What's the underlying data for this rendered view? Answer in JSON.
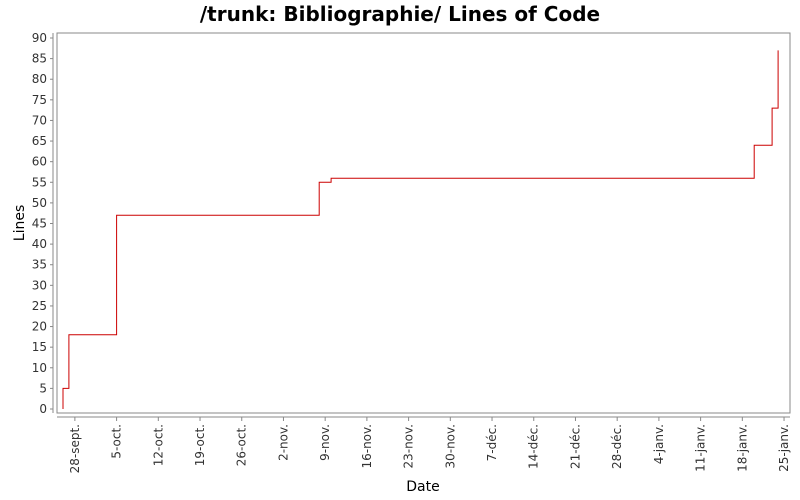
{
  "chart_data": {
    "type": "line",
    "title": "/trunk: Bibliographie/ Lines of Code",
    "xlabel": "Date",
    "ylabel": "Lines",
    "ylim": [
      0,
      90
    ],
    "yticks": [
      0,
      5,
      10,
      15,
      20,
      25,
      30,
      35,
      40,
      45,
      50,
      55,
      60,
      65,
      70,
      75,
      80,
      85,
      90
    ],
    "x_ticks": [
      {
        "label": "28-sept.",
        "date": "2008-09-28"
      },
      {
        "label": "5-oct.",
        "date": "2008-10-05"
      },
      {
        "label": "12-oct.",
        "date": "2008-10-12"
      },
      {
        "label": "19-oct.",
        "date": "2008-10-19"
      },
      {
        "label": "26-oct.",
        "date": "2008-10-26"
      },
      {
        "label": "2-nov.",
        "date": "2008-11-02"
      },
      {
        "label": "9-nov.",
        "date": "2008-11-09"
      },
      {
        "label": "16-nov.",
        "date": "2008-11-16"
      },
      {
        "label": "23-nov.",
        "date": "2008-11-23"
      },
      {
        "label": "30-nov.",
        "date": "2008-11-30"
      },
      {
        "label": "7-déc.",
        "date": "2008-12-07"
      },
      {
        "label": "14-déc.",
        "date": "2008-12-14"
      },
      {
        "label": "21-déc.",
        "date": "2008-12-21"
      },
      {
        "label": "28-déc.",
        "date": "2008-12-28"
      },
      {
        "label": "4-janv.",
        "date": "2009-01-04"
      },
      {
        "label": "11-janv.",
        "date": "2009-01-11"
      },
      {
        "label": "18-janv.",
        "date": "2009-01-18"
      },
      {
        "label": "25-janv.",
        "date": "2009-01-25"
      }
    ],
    "xlim": [
      "2008-09-25",
      "2009-01-26"
    ],
    "step": true,
    "series": [
      {
        "color": "#cc0000",
        "points": [
          {
            "date": "2008-09-26",
            "value": 0
          },
          {
            "date": "2008-09-26",
            "value": 5
          },
          {
            "date": "2008-09-27",
            "value": 5
          },
          {
            "date": "2008-09-27",
            "value": 10
          },
          {
            "date": "2008-09-27",
            "value": 10
          },
          {
            "date": "2008-09-27",
            "value": 18
          },
          {
            "date": "2008-10-05",
            "value": 18
          },
          {
            "date": "2008-10-05",
            "value": 47
          },
          {
            "date": "2008-11-08",
            "value": 47
          },
          {
            "date": "2008-11-08",
            "value": 55
          },
          {
            "date": "2008-11-10",
            "value": 55
          },
          {
            "date": "2008-11-10",
            "value": 56
          },
          {
            "date": "2009-01-20",
            "value": 56
          },
          {
            "date": "2009-01-20",
            "value": 64
          },
          {
            "date": "2009-01-23",
            "value": 64
          },
          {
            "date": "2009-01-23",
            "value": 73
          },
          {
            "date": "2009-01-24",
            "value": 73
          },
          {
            "date": "2009-01-24",
            "value": 87
          }
        ]
      }
    ],
    "grid": false,
    "legend": "none"
  }
}
